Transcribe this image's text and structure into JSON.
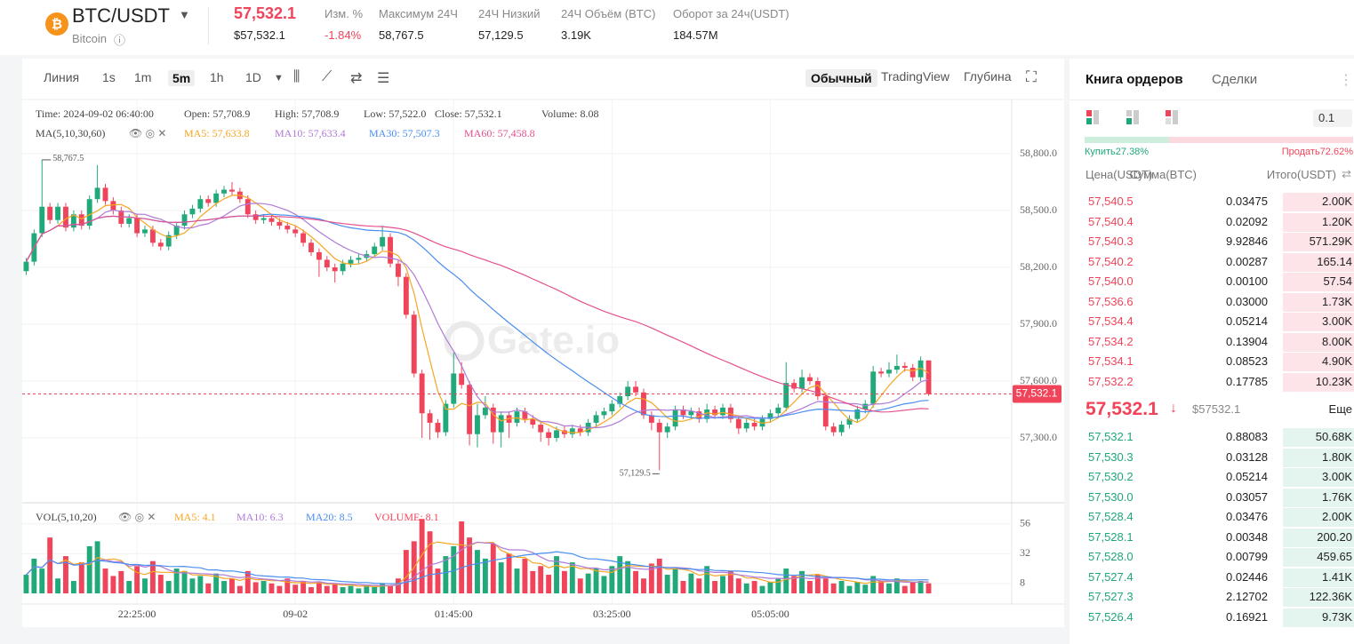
{
  "header": {
    "symbol": "BTC/USDT",
    "name": "Bitcoin",
    "price": "57,532.1",
    "price_usd": "$57,532.1",
    "stats": [
      {
        "label": "Изм. %",
        "value": "-1.84%"
      },
      {
        "label": "Максимум 24Ч",
        "value": "58,767.5"
      },
      {
        "label": "24Ч Низкий",
        "value": "57,129.5"
      },
      {
        "label": "24Ч Объём (BTC)",
        "value": "3.19K"
      },
      {
        "label": "Оборот за 24ч(USDT)",
        "value": "184.57M"
      }
    ]
  },
  "toolbar": {
    "intervals": [
      "Линия",
      "1s",
      "1m",
      "5m",
      "1h",
      "1D"
    ],
    "views": [
      "Обычный",
      "TradingView",
      "Глубина"
    ]
  },
  "chart_data": {
    "type": "candlestick",
    "watermark": "Gate.io",
    "info": [
      "Time: 2024-09-02 06:40:00",
      "Open: 57,708.9",
      "High: 57,708.9",
      "Low: 57,522.0",
      "Close: 57,532.1",
      "Volume: 8.08"
    ],
    "ma_legend": {
      "title": "MA(5,10,30,60)",
      "items": [
        {
          "period": 5,
          "label": "MA5: 57,633.8",
          "color": "#f5a623"
        },
        {
          "period": 10,
          "label": "MA10: 57,633.4",
          "color": "#b07ad8"
        },
        {
          "period": 30,
          "label": "MA30: 57,507.3",
          "color": "#4a8ef0"
        },
        {
          "period": 60,
          "label": "MA60: 57,458.8",
          "color": "#e4508f"
        }
      ]
    },
    "vol_legend": {
      "title": "VOL(5,10,20)",
      "items": [
        {
          "period": 5,
          "label": "MA5: 4.1",
          "color": "#f5a623"
        },
        {
          "period": 10,
          "label": "MA10: 6.3",
          "color": "#b07ad8"
        },
        {
          "period": 20,
          "label": "MA20: 8.5",
          "color": "#4a8ef0"
        }
      ],
      "volume_label": "VOLUME: 8.1"
    },
    "up_color": "#22a97a",
    "down_color": "#f0445a",
    "high_label": "58,767.5",
    "low_label": "57,129.5",
    "current_price_label": "57,532.1",
    "xlim": [
      -0.5,
      124.5
    ],
    "xticks": [
      {
        "value": 14,
        "label": "22:25:00"
      },
      {
        "value": 34,
        "label": "09-02"
      },
      {
        "value": 54,
        "label": "01:45:00"
      },
      {
        "value": 74,
        "label": "03:25:00"
      },
      {
        "value": 94,
        "label": "05:05:00"
      }
    ],
    "ylim": [
      56962.5,
      59081.25
    ],
    "yticks": [
      {
        "value": 57300,
        "label": "57,300.0"
      },
      {
        "value": 57600,
        "label": "57,600.0"
      },
      {
        "value": 57900,
        "label": "57,900.0"
      },
      {
        "value": 58200,
        "label": "58,200.0"
      },
      {
        "value": 58500,
        "label": "58,500.0"
      },
      {
        "value": 58800,
        "label": "58,800.0"
      }
    ],
    "vol_ylim": [
      0,
      71.6
    ],
    "vol_yticks": [
      8,
      32,
      56
    ],
    "candles": [
      [
        58180,
        58250,
        58160,
        58230
      ],
      [
        58230,
        58400,
        58210,
        58380
      ],
      [
        58380,
        58767.5,
        58360,
        58520
      ],
      [
        58520,
        58540,
        58430,
        58450
      ],
      [
        58450,
        58540,
        58430,
        58520
      ],
      [
        58520,
        58540,
        58390,
        58410
      ],
      [
        58410,
        58500,
        58390,
        58480
      ],
      [
        58480,
        58500,
        58400,
        58420
      ],
      [
        58420,
        58580,
        58400,
        58560
      ],
      [
        58560,
        58740,
        58540,
        58620
      ],
      [
        58620,
        58640,
        58530,
        58550
      ],
      [
        58550,
        58570,
        58480,
        58500
      ],
      [
        58500,
        58520,
        58410,
        58430
      ],
      [
        58430,
        58480,
        58410,
        58460
      ],
      [
        58460,
        58480,
        58360,
        58380
      ],
      [
        58380,
        58420,
        58360,
        58400
      ],
      [
        58400,
        58420,
        58310,
        58330
      ],
      [
        58330,
        58350,
        58290,
        58310
      ],
      [
        58310,
        58390,
        58290,
        58370
      ],
      [
        58370,
        58440,
        58350,
        58420
      ],
      [
        58420,
        58500,
        58400,
        58480
      ],
      [
        58480,
        58530,
        58460,
        58510
      ],
      [
        58510,
        58580,
        58490,
        58560
      ],
      [
        58560,
        58580,
        58520,
        58540
      ],
      [
        58540,
        58610,
        58520,
        58590
      ],
      [
        58590,
        58630,
        58570,
        58610
      ],
      [
        58610,
        58650,
        58580,
        58600
      ],
      [
        58600,
        58620,
        58540,
        58560
      ],
      [
        58560,
        58580,
        58460,
        58480
      ],
      [
        58480,
        58500,
        58430,
        58450
      ],
      [
        58450,
        58480,
        58430,
        58460
      ],
      [
        58460,
        58480,
        58420,
        58440
      ],
      [
        58440,
        58460,
        58400,
        58420
      ],
      [
        58420,
        58440,
        58380,
        58400
      ],
      [
        58400,
        58420,
        58360,
        58380
      ],
      [
        58380,
        58400,
        58310,
        58330
      ],
      [
        58330,
        58350,
        58260,
        58280
      ],
      [
        58280,
        58300,
        58150,
        58240
      ],
      [
        58240,
        58260,
        58180,
        58200
      ],
      [
        58200,
        58220,
        58120,
        58180
      ],
      [
        58180,
        58240,
        58160,
        58220
      ],
      [
        58220,
        58260,
        58200,
        58240
      ],
      [
        58240,
        58270,
        58220,
        58250
      ],
      [
        58250,
        58290,
        58230,
        58270
      ],
      [
        58270,
        58330,
        58250,
        58310
      ],
      [
        58310,
        58420,
        58290,
        58360
      ],
      [
        58360,
        58380,
        58200,
        58220
      ],
      [
        58220,
        58240,
        58100,
        58150
      ],
      [
        58150,
        58170,
        57930,
        57950
      ],
      [
        57950,
        57970,
        57620,
        57640
      ],
      [
        57640,
        57660,
        57300,
        57430
      ],
      [
        57430,
        57450,
        57290,
        57380
      ],
      [
        57380,
        57400,
        57300,
        57330
      ],
      [
        57330,
        57500,
        57310,
        57480
      ],
      [
        57480,
        57750,
        57460,
        57640
      ],
      [
        57640,
        57700,
        57560,
        57580
      ],
      [
        57580,
        57600,
        57260,
        57320
      ],
      [
        57320,
        57480,
        57250,
        57420
      ],
      [
        57420,
        57520,
        57400,
        57460
      ],
      [
        57460,
        57480,
        57270,
        57330
      ],
      [
        57330,
        57440,
        57250,
        57420
      ],
      [
        57420,
        57440,
        57300,
        57380
      ],
      [
        57380,
        57460,
        57360,
        57440
      ],
      [
        57440,
        57460,
        57380,
        57400
      ],
      [
        57400,
        57420,
        57350,
        57370
      ],
      [
        57370,
        57390,
        57280,
        57330
      ],
      [
        57330,
        57350,
        57260,
        57300
      ],
      [
        57300,
        57360,
        57280,
        57340
      ],
      [
        57340,
        57360,
        57300,
        57320
      ],
      [
        57320,
        57370,
        57300,
        57350
      ],
      [
        57350,
        57370,
        57310,
        57330
      ],
      [
        57330,
        57400,
        57310,
        57380
      ],
      [
        57380,
        57440,
        57360,
        57420
      ],
      [
        57420,
        57460,
        57400,
        57440
      ],
      [
        57440,
        57500,
        57420,
        57480
      ],
      [
        57480,
        57540,
        57460,
        57520
      ],
      [
        57520,
        57600,
        57500,
        57570
      ],
      [
        57570,
        57600,
        57520,
        57540
      ],
      [
        57540,
        57560,
        57400,
        57420
      ],
      [
        57420,
        57440,
        57340,
        57380
      ],
      [
        57380,
        57400,
        57129.5,
        57330
      ],
      [
        57330,
        57380,
        57300,
        57360
      ],
      [
        57360,
        57470,
        57340,
        57450
      ],
      [
        57450,
        57470,
        57400,
        57420
      ],
      [
        57420,
        57460,
        57400,
        57440
      ],
      [
        57440,
        57460,
        57380,
        57400
      ],
      [
        57400,
        57480,
        57380,
        57450
      ],
      [
        57450,
        57470,
        57400,
        57420
      ],
      [
        57420,
        57480,
        57400,
        57460
      ],
      [
        57460,
        57480,
        57380,
        57400
      ],
      [
        57400,
        57420,
        57320,
        57350
      ],
      [
        57350,
        57400,
        57330,
        57380
      ],
      [
        57380,
        57400,
        57340,
        57360
      ],
      [
        57360,
        57420,
        57340,
        57400
      ],
      [
        57400,
        57450,
        57380,
        57430
      ],
      [
        57430,
        57480,
        57410,
        57460
      ],
      [
        57460,
        57700,
        57440,
        57590
      ],
      [
        57590,
        57610,
        57540,
        57560
      ],
      [
        57560,
        57660,
        57540,
        57620
      ],
      [
        57620,
        57640,
        57580,
        57600
      ],
      [
        57600,
        57620,
        57500,
        57520
      ],
      [
        57520,
        57540,
        57340,
        57360
      ],
      [
        57360,
        57380,
        57310,
        57330
      ],
      [
        57330,
        57390,
        57310,
        57370
      ],
      [
        57370,
        57420,
        57350,
        57400
      ],
      [
        57400,
        57470,
        57380,
        57450
      ],
      [
        57450,
        57500,
        57430,
        57480
      ],
      [
        57480,
        57680,
        57460,
        57650
      ],
      [
        57650,
        57670,
        57620,
        57640
      ],
      [
        57640,
        57700,
        57620,
        57660
      ],
      [
        57660,
        57740,
        57640,
        57680
      ],
      [
        57680,
        57700,
        57650,
        57670
      ],
      [
        57670,
        57690,
        57600,
        57620
      ],
      [
        57620,
        57730,
        57600,
        57708.9
      ],
      [
        57708.9,
        57708.9,
        57522.0,
        57532.1
      ]
    ],
    "volume": [
      15,
      28,
      20,
      45,
      12,
      30,
      10,
      25,
      38,
      42,
      20,
      14,
      18,
      10,
      22,
      12,
      26,
      15,
      10,
      20,
      18,
      12,
      14,
      8,
      16,
      10,
      12,
      6,
      18,
      9,
      10,
      8,
      6,
      12,
      7,
      10,
      5,
      9,
      6,
      8,
      5,
      6,
      4,
      7,
      5,
      8,
      6,
      12,
      35,
      42,
      60,
      50,
      20,
      30,
      38,
      58,
      45,
      35,
      28,
      40,
      25,
      32,
      20,
      28,
      18,
      22,
      15,
      30,
      18,
      25,
      12,
      16,
      20,
      14,
      22,
      30,
      26,
      18,
      12,
      24,
      28,
      15,
      20,
      10,
      16,
      12,
      22,
      10,
      14,
      18,
      12,
      8,
      10,
      6,
      9,
      12,
      20,
      14,
      18,
      10,
      15,
      12,
      8,
      10,
      6,
      9,
      7,
      14,
      10,
      8,
      12,
      6,
      9,
      10,
      8.08
    ]
  },
  "orderbook": {
    "tabs": [
      "Книга ордеров",
      "Сделки"
    ],
    "precision": "0.1",
    "buy_ratio": "Купить27.38%",
    "sell_ratio": "Продать72.62%",
    "columns": [
      "Цена(USDT)",
      "Сумма(BTC)",
      "Итого(USDT)"
    ],
    "asks": [
      [
        "57,540.5",
        "0.03475",
        "2.00K"
      ],
      [
        "57,540.4",
        "0.02092",
        "1.20K"
      ],
      [
        "57,540.3",
        "9.92846",
        "571.29K"
      ],
      [
        "57,540.2",
        "0.00287",
        "165.14"
      ],
      [
        "57,540.0",
        "0.00100",
        "57.54"
      ],
      [
        "57,536.6",
        "0.03000",
        "1.73K"
      ],
      [
        "57,534.4",
        "0.05214",
        "3.00K"
      ],
      [
        "57,534.2",
        "0.13904",
        "8.00K"
      ],
      [
        "57,534.1",
        "0.08523",
        "4.90K"
      ],
      [
        "57,532.2",
        "0.17785",
        "10.23K"
      ]
    ],
    "last_price": "57,532.1",
    "last_price_usd": "$57532.1",
    "more": "Еще",
    "bids": [
      [
        "57,532.1",
        "0.88083",
        "50.68K"
      ],
      [
        "57,530.3",
        "0.03128",
        "1.80K"
      ],
      [
        "57,530.2",
        "0.05214",
        "3.00K"
      ],
      [
        "57,530.0",
        "0.03057",
        "1.76K"
      ],
      [
        "57,528.4",
        "0.03476",
        "2.00K"
      ],
      [
        "57,528.1",
        "0.00348",
        "200.20"
      ],
      [
        "57,528.0",
        "0.00799",
        "459.65"
      ],
      [
        "57,527.4",
        "0.02446",
        "1.41K"
      ],
      [
        "57,527.3",
        "2.12702",
        "122.36K"
      ],
      [
        "57,526.4",
        "0.16921",
        "9.73K"
      ]
    ]
  }
}
